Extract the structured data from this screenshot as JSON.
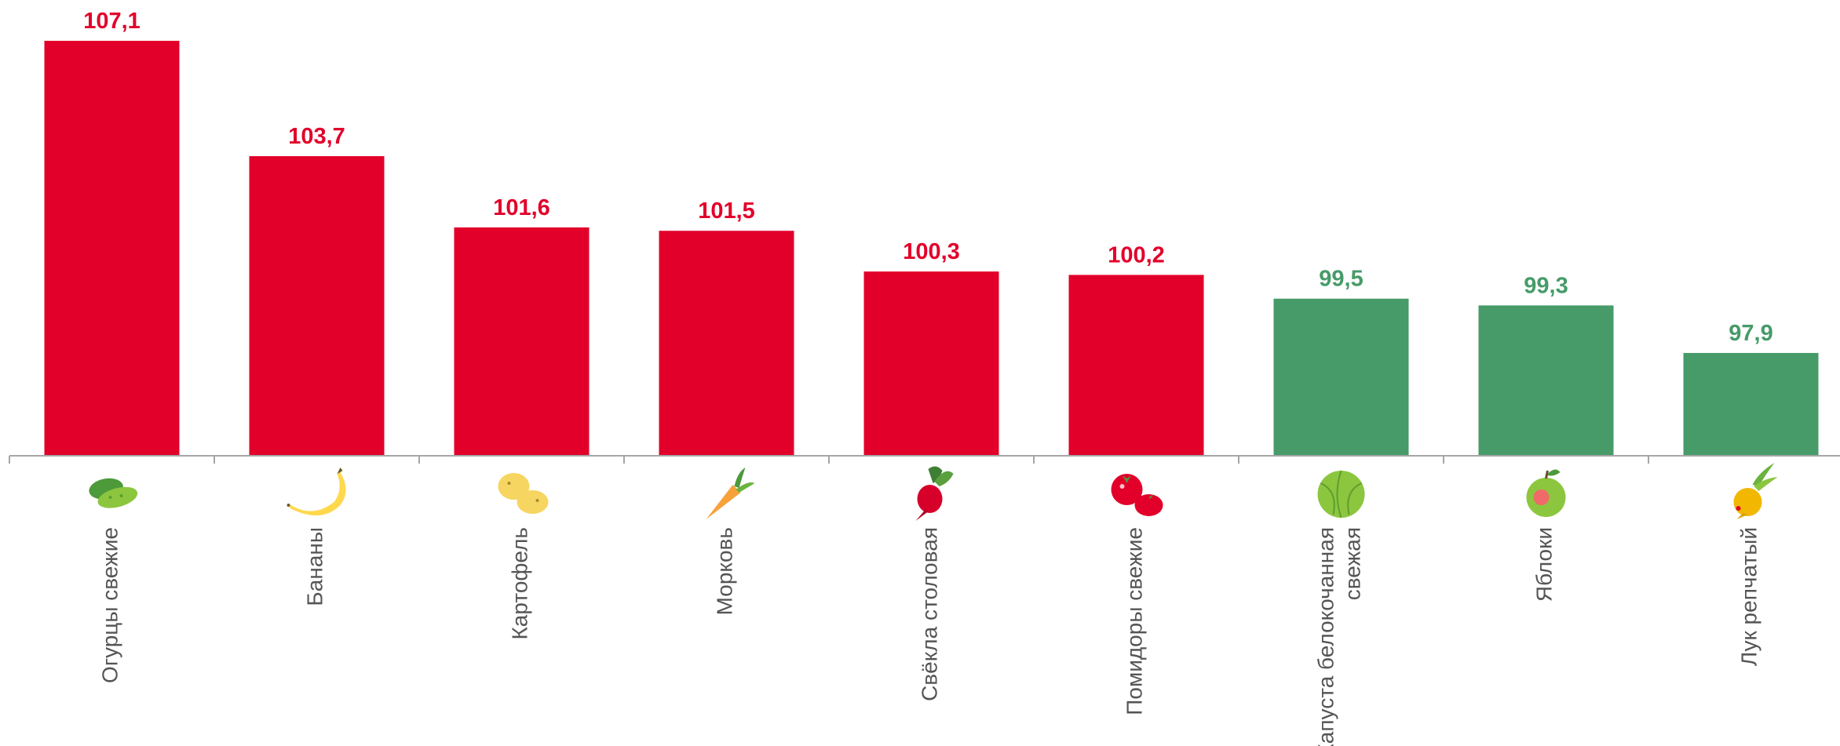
{
  "chart_data": {
    "type": "bar",
    "baseline": 100,
    "categories": [
      {
        "label": [
          "Огурцы свежие"
        ],
        "icon": "cucumber-icon"
      },
      {
        "label": [
          "Бананы"
        ],
        "icon": "banana-icon"
      },
      {
        "label": [
          "Картофель"
        ],
        "icon": "potato-icon"
      },
      {
        "label": [
          "Морковь"
        ],
        "icon": "carrot-icon"
      },
      {
        "label": [
          "Свёкла столовая"
        ],
        "icon": "beet-icon"
      },
      {
        "label": [
          "Помидоры свежие"
        ],
        "icon": "tomato-icon"
      },
      {
        "label": [
          "Капуста белокочанная",
          "свежая"
        ],
        "icon": "cabbage-icon"
      },
      {
        "label": [
          "Яблоки"
        ],
        "icon": "apple-icon"
      },
      {
        "label": [
          "Лук репчатый"
        ],
        "icon": "onion-icon"
      }
    ],
    "values": [
      107.1,
      103.7,
      101.6,
      101.5,
      100.3,
      100.2,
      99.5,
      99.3,
      97.9
    ],
    "value_labels": [
      "107,1",
      "103,7",
      "101,6",
      "101,5",
      "100,3",
      "100,2",
      "99,5",
      "99,3",
      "97,9"
    ],
    "title": "",
    "xlabel": "",
    "ylabel": "",
    "ylim": [
      94.87,
      107.1
    ],
    "grid": false,
    "legend": "none",
    "colors": {
      "above_baseline": "#E2002A",
      "below_baseline": "#469B68",
      "axis": "#A6A6A6",
      "category_text": "#555555"
    }
  }
}
